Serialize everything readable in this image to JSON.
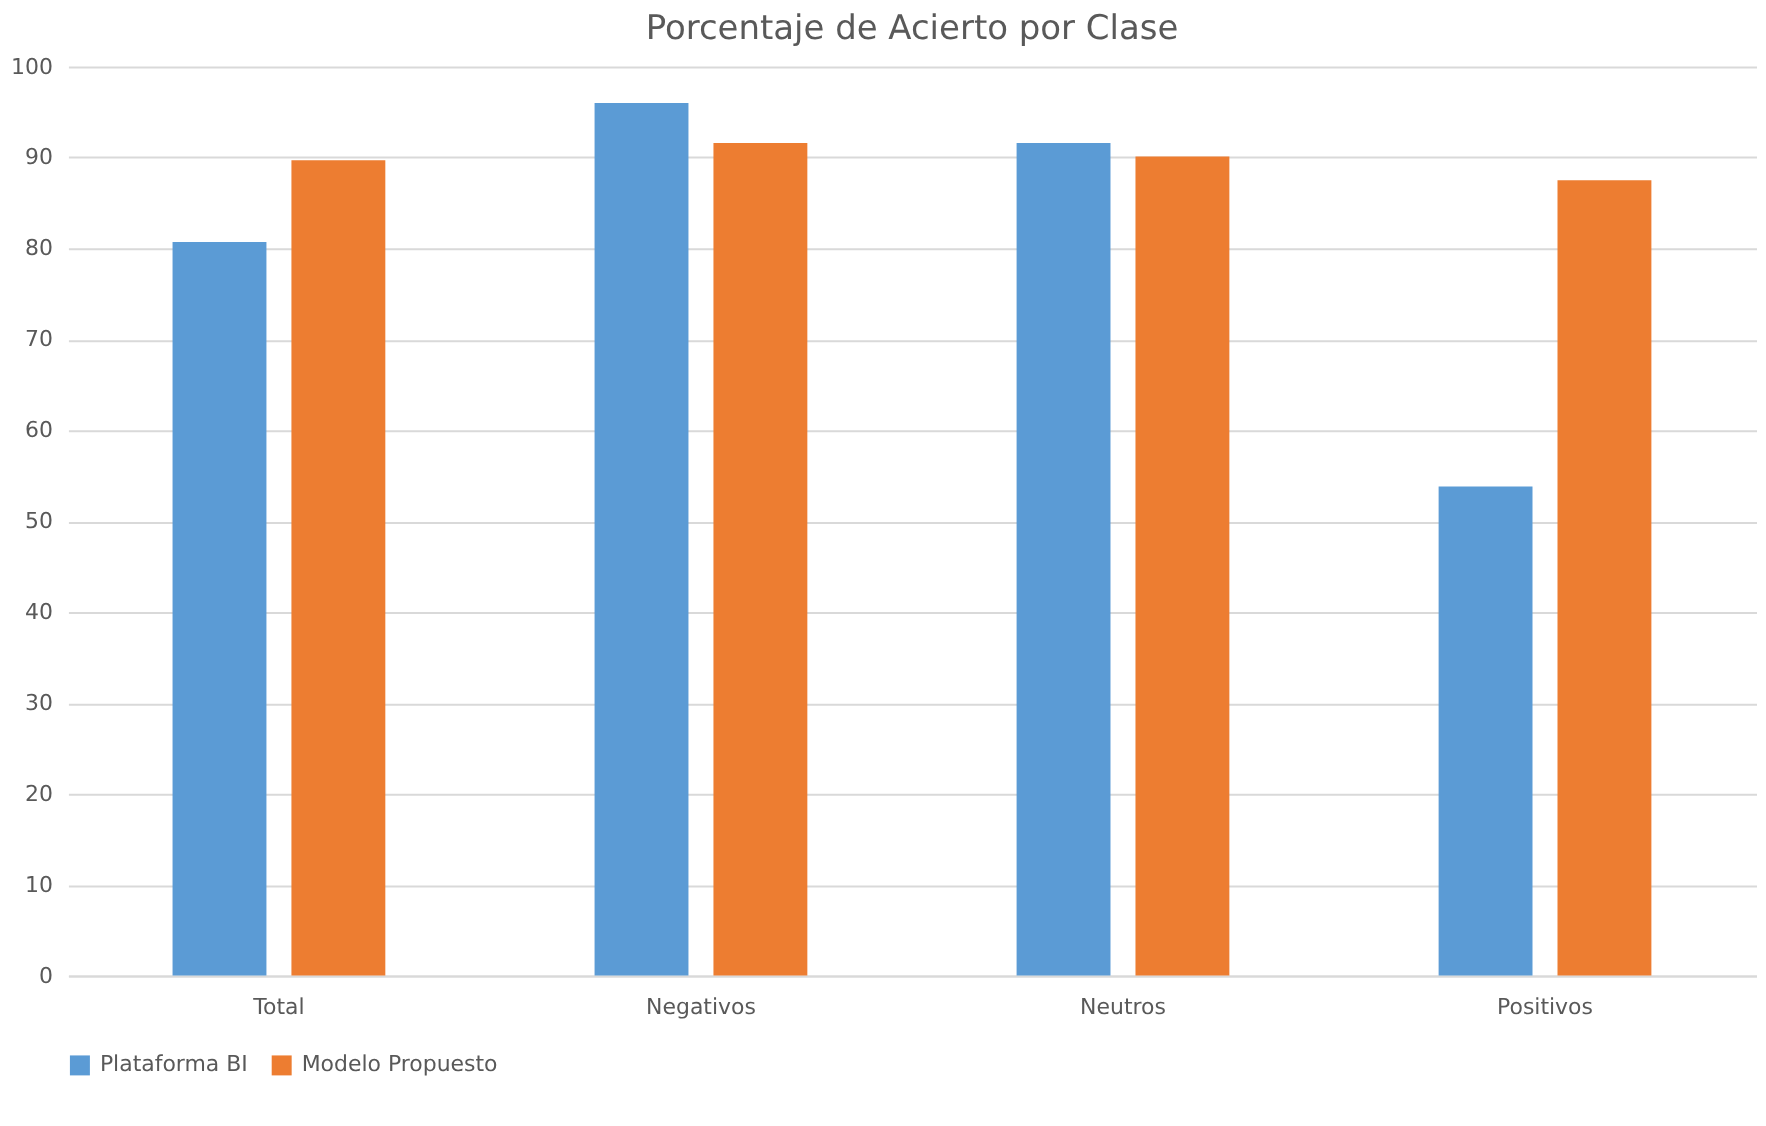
{
  "chart_data": {
    "type": "bar",
    "title": "Porcentaje de Acierto por Clase",
    "categories": [
      "Total",
      "Negativos",
      "Neutros",
      "Positivos"
    ],
    "series": [
      {
        "name": "Plataforma BI",
        "color": "#5b9bd5",
        "values": [
          80.7,
          96.0,
          91.6,
          53.8
        ]
      },
      {
        "name": "Modelo Propuesto",
        "color": "#ed7d31",
        "values": [
          89.7,
          91.6,
          90.1,
          87.5
        ]
      }
    ],
    "ylim": [
      0,
      100
    ],
    "yticks": [
      0,
      10,
      20,
      30,
      40,
      50,
      60,
      70,
      80,
      90,
      100
    ],
    "grid": "y",
    "legend": "bottom"
  }
}
